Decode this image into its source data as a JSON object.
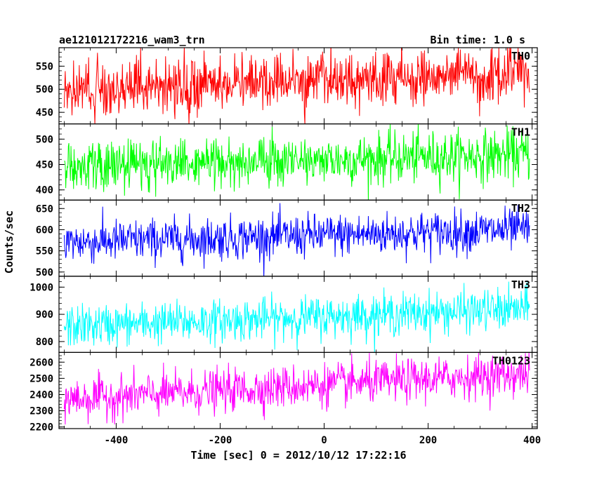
{
  "header": {
    "title": "ae121012172216_wam3_trn",
    "bin_time": "Bin time: 1.0 s"
  },
  "chart_data": {
    "type": "line",
    "xlabel": "Time [sec] 0 = 2012/10/12 17:22:16",
    "ylabel": "Counts/sec",
    "xlim": [
      -510,
      410
    ],
    "xticks": [
      -400,
      -200,
      0,
      200,
      400
    ],
    "x_range": [
      -500,
      395
    ],
    "x_step": 1,
    "grid": false,
    "panels": [
      {
        "name": "TH0",
        "color": "#ff0000",
        "ylim": [
          425,
          590
        ],
        "yticks": [
          450,
          500,
          550
        ],
        "mean_start": 500,
        "mean_end": 535,
        "noise": 28
      },
      {
        "name": "TH1",
        "color": "#00ff00",
        "ylim": [
          380,
          530
        ],
        "yticks": [
          400,
          450,
          500
        ],
        "mean_start": 445,
        "mean_end": 470,
        "noise": 25
      },
      {
        "name": "TH2",
        "color": "#0000ff",
        "ylim": [
          490,
          670
        ],
        "yticks": [
          500,
          550,
          600,
          650
        ],
        "mean_start": 570,
        "mean_end": 600,
        "noise": 25
      },
      {
        "name": "TH3",
        "color": "#00ffff",
        "ylim": [
          760,
          1040
        ],
        "yticks": [
          800,
          900,
          1000
        ],
        "mean_start": 855,
        "mean_end": 920,
        "noise": 38
      },
      {
        "name": "TH0123",
        "color": "#ff00ff",
        "ylim": [
          2190,
          2660
        ],
        "yticks": [
          2200,
          2300,
          2400,
          2500,
          2600
        ],
        "mean_start": 2370,
        "mean_end": 2530,
        "noise": 65
      }
    ]
  }
}
